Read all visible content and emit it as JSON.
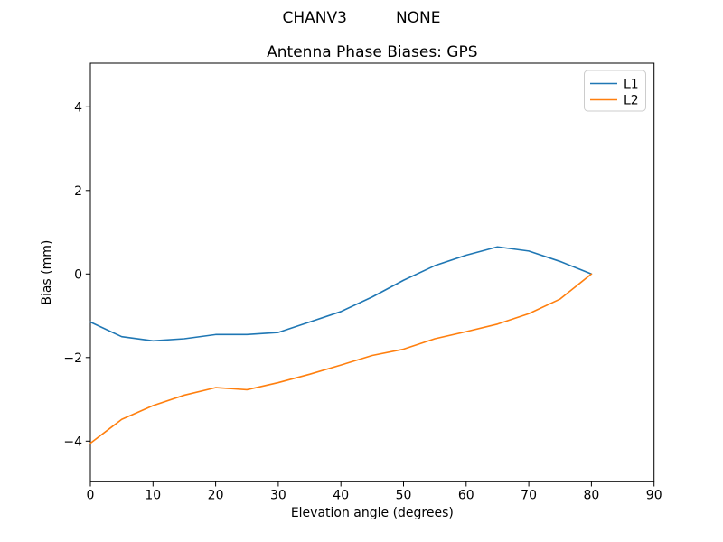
{
  "figure": {
    "background": "#ffffff",
    "suptitle": "CHANV3          NONE"
  },
  "chart_data": {
    "type": "line",
    "suptitle": "CHANV3          NONE",
    "title": "Antenna Phase Biases: GPS",
    "xlabel": "Elevation angle (degrees)",
    "ylabel": "Bias (mm)",
    "xlim": [
      0,
      90
    ],
    "ylim": [
      -4.97,
      5.04
    ],
    "xticks": [
      0,
      10,
      20,
      30,
      40,
      50,
      60,
      70,
      80,
      90
    ],
    "yticks": [
      -4,
      -2,
      0,
      2,
      4
    ],
    "grid": false,
    "legend_position": "upper right",
    "x": [
      0,
      5,
      10,
      15,
      20,
      25,
      30,
      35,
      40,
      45,
      50,
      55,
      60,
      65,
      70,
      75,
      80
    ],
    "series": [
      {
        "name": "L1",
        "color": "#1f77b4",
        "values": [
          -1.15,
          -1.5,
          -1.6,
          -1.55,
          -1.45,
          -1.45,
          -1.4,
          -1.15,
          -0.9,
          -0.55,
          -0.15,
          0.2,
          0.45,
          0.65,
          0.55,
          0.3,
          0.0
        ]
      },
      {
        "name": "L2",
        "color": "#ff7f0e",
        "values": [
          -4.05,
          -3.48,
          -3.15,
          -2.9,
          -2.72,
          -2.77,
          -2.6,
          -2.4,
          -2.18,
          -1.95,
          -1.8,
          -1.55,
          -1.38,
          -1.2,
          -0.95,
          -0.6,
          0.0
        ]
      }
    ]
  }
}
